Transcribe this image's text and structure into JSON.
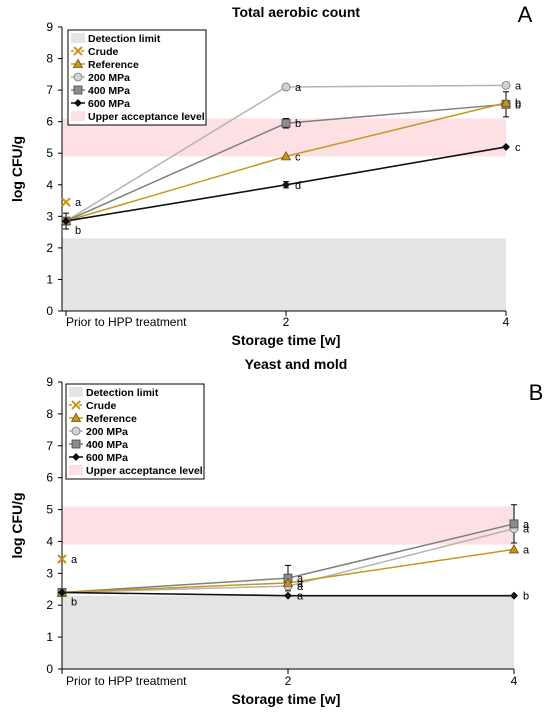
{
  "chart_data": [
    {
      "type": "line",
      "panel_letter": "A",
      "title": "Total aerobic count",
      "xlabel": "Storage time [w]",
      "ylabel": "log CFU/g",
      "x_categories": [
        "Prior to HPP treatment",
        "2",
        "4"
      ],
      "ylim": [
        0,
        9
      ],
      "yticks": [
        "0",
        "1",
        "2",
        "3",
        "4",
        "5",
        "6",
        "7",
        "8",
        "9"
      ],
      "detection_limit": 2.3,
      "acceptance_band": [
        4.9,
        6.1
      ],
      "legend": {
        "detection": "Detection limit",
        "crude": "Crude",
        "reference": "Reference",
        "s200": "200 MPa",
        "s400": "400 MPa",
        "s600": "600 MPa",
        "upper": "Upper acceptance level"
      },
      "series": [
        {
          "name": "Crude",
          "key": "crude",
          "values": [
            3.45,
            null,
            null
          ],
          "labels": [
            "a",
            null,
            null
          ],
          "err": [
            0,
            0,
            0
          ]
        },
        {
          "name": "Reference",
          "key": "reference",
          "values": [
            2.85,
            4.9,
            6.6
          ],
          "labels": [
            null,
            "c",
            "b"
          ],
          "err": [
            0,
            0,
            0
          ]
        },
        {
          "name": "200 MPa",
          "key": "s200",
          "values": [
            2.85,
            7.1,
            7.15
          ],
          "labels": [
            null,
            "a",
            "a"
          ],
          "err": [
            0,
            0,
            0
          ]
        },
        {
          "name": "400 MPa",
          "key": "s400",
          "values": [
            2.85,
            5.95,
            6.55
          ],
          "labels": [
            null,
            "b",
            "b"
          ],
          "err": [
            0,
            0.15,
            0.4
          ]
        },
        {
          "name": "600 MPa",
          "key": "s600",
          "values": [
            2.85,
            4.0,
            5.2
          ],
          "labels": [
            "b",
            "d",
            "c"
          ],
          "err": [
            0.25,
            0.1,
            0
          ]
        }
      ]
    },
    {
      "type": "line",
      "panel_letter": "B",
      "title": "Yeast and mold",
      "xlabel": "Storage time [w]",
      "ylabel": "log CFU/g",
      "x_categories": [
        "Prior to HPP treatment",
        "2",
        "4"
      ],
      "ylim": [
        0,
        9
      ],
      "yticks": [
        "0",
        "1",
        "2",
        "3",
        "4",
        "5",
        "6",
        "7",
        "8",
        "9"
      ],
      "detection_limit": 2.3,
      "acceptance_band": [
        3.9,
        5.1
      ],
      "legend": {
        "detection": "Detection limit",
        "crude": "Crude",
        "reference": "Reference",
        "s200": "200 MPa",
        "s400": "400 MPa",
        "s600": "600 MPa",
        "upper": "Upper acceptance level"
      },
      "series": [
        {
          "name": "Crude",
          "key": "crude",
          "values": [
            3.45,
            null,
            null
          ],
          "labels": [
            "a",
            null,
            null
          ],
          "err": [
            0,
            0,
            0
          ]
        },
        {
          "name": "Reference",
          "key": "reference",
          "values": [
            2.4,
            2.7,
            3.75
          ],
          "labels": [
            null,
            "a",
            "a"
          ],
          "err": [
            0,
            0,
            0
          ]
        },
        {
          "name": "200 MPa",
          "key": "s200",
          "values": [
            2.4,
            2.6,
            4.4
          ],
          "labels": [
            null,
            "a",
            "a"
          ],
          "err": [
            0,
            0,
            0
          ]
        },
        {
          "name": "400 MPa",
          "key": "s400",
          "values": [
            2.4,
            2.85,
            4.55
          ],
          "labels": [
            null,
            "a",
            "a"
          ],
          "err": [
            0,
            0.4,
            0.6
          ]
        },
        {
          "name": "600 MPa",
          "key": "s600",
          "values": [
            2.4,
            2.3,
            2.3
          ],
          "labels": [
            "b",
            "a",
            "b"
          ],
          "err": [
            0,
            0,
            0
          ]
        }
      ]
    }
  ]
}
